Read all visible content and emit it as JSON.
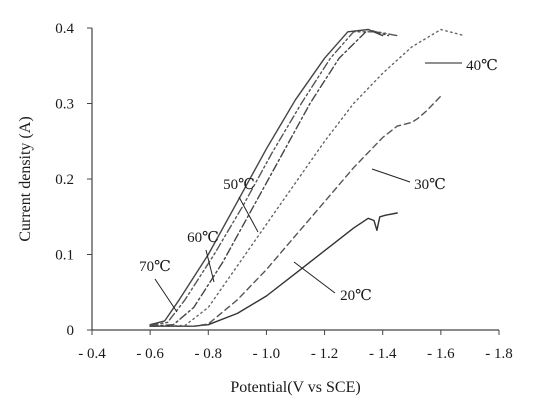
{
  "chart_data": {
    "type": "line",
    "xlabel": "Potential(V vs SCE)",
    "ylabel": "Current density (A)",
    "xlim": [
      -0.4,
      -1.8
    ],
    "ylim": [
      0,
      0.4
    ],
    "x_ticks": [
      -0.4,
      -0.6,
      -0.8,
      -1.0,
      -1.2,
      -1.4,
      -1.6,
      -1.8
    ],
    "x_tick_labels": [
      "- 0.4",
      "- 0.6",
      "- 0.8",
      "- 1.0",
      "- 1.2",
      "- 1.4",
      "- 1.6",
      "- 1.8"
    ],
    "y_ticks": [
      0,
      0.1,
      0.2,
      0.3,
      0.4
    ],
    "y_tick_labels": [
      "0",
      "0.1",
      "0.2",
      "0.3",
      "0.4"
    ],
    "grid": false,
    "series": [
      {
        "label": "20℃",
        "color": "#333333",
        "dash": "solid",
        "points": [
          [
            -0.6,
            0.005
          ],
          [
            -0.75,
            0.005
          ],
          [
            -0.8,
            0.007
          ],
          [
            -0.9,
            0.022
          ],
          [
            -1.0,
            0.045
          ],
          [
            -1.1,
            0.075
          ],
          [
            -1.2,
            0.105
          ],
          [
            -1.3,
            0.135
          ],
          [
            -1.35,
            0.148
          ],
          [
            -1.37,
            0.145
          ],
          [
            -1.38,
            0.132
          ],
          [
            -1.39,
            0.15
          ],
          [
            -1.41,
            0.152
          ],
          [
            -1.45,
            0.155
          ]
        ]
      },
      {
        "label": "30℃",
        "color": "#555555",
        "dash": "dashed",
        "points": [
          [
            -0.6,
            0.005
          ],
          [
            -0.75,
            0.005
          ],
          [
            -0.8,
            0.008
          ],
          [
            -0.9,
            0.04
          ],
          [
            -1.0,
            0.08
          ],
          [
            -1.1,
            0.125
          ],
          [
            -1.2,
            0.17
          ],
          [
            -1.3,
            0.215
          ],
          [
            -1.4,
            0.255
          ],
          [
            -1.45,
            0.27
          ],
          [
            -1.5,
            0.275
          ],
          [
            -1.52,
            0.28
          ],
          [
            -1.55,
            0.29
          ],
          [
            -1.6,
            0.31
          ]
        ]
      },
      {
        "label": "40℃",
        "color": "#666666",
        "dash": "dotted",
        "points": [
          [
            -0.6,
            0.005
          ],
          [
            -0.72,
            0.006
          ],
          [
            -0.8,
            0.03
          ],
          [
            -0.9,
            0.085
          ],
          [
            -1.0,
            0.14
          ],
          [
            -1.1,
            0.195
          ],
          [
            -1.2,
            0.25
          ],
          [
            -1.3,
            0.3
          ],
          [
            -1.4,
            0.34
          ],
          [
            -1.5,
            0.375
          ],
          [
            -1.6,
            0.398
          ],
          [
            -1.68,
            0.39
          ]
        ]
      },
      {
        "label": "50℃",
        "color": "#444444",
        "dash": "dashdot",
        "points": [
          [
            -0.6,
            0.005
          ],
          [
            -0.68,
            0.007
          ],
          [
            -0.75,
            0.03
          ],
          [
            -0.85,
            0.09
          ],
          [
            -0.95,
            0.16
          ],
          [
            -1.05,
            0.23
          ],
          [
            -1.15,
            0.3
          ],
          [
            -1.25,
            0.36
          ],
          [
            -1.35,
            0.398
          ],
          [
            -1.42,
            0.39
          ]
        ]
      },
      {
        "label": "60℃",
        "color": "#555555",
        "dash": "dashdotdot",
        "points": [
          [
            -0.6,
            0.006
          ],
          [
            -0.66,
            0.01
          ],
          [
            -0.72,
            0.04
          ],
          [
            -0.82,
            0.1
          ],
          [
            -0.92,
            0.165
          ],
          [
            -1.02,
            0.235
          ],
          [
            -1.12,
            0.3
          ],
          [
            -1.22,
            0.36
          ],
          [
            -1.3,
            0.395
          ],
          [
            -1.38,
            0.395
          ],
          [
            -1.45,
            0.39
          ]
        ]
      },
      {
        "label": "70℃",
        "color": "#444444",
        "dash": "solid",
        "points": [
          [
            -0.6,
            0.007
          ],
          [
            -0.65,
            0.012
          ],
          [
            -0.7,
            0.04
          ],
          [
            -0.8,
            0.1
          ],
          [
            -0.9,
            0.17
          ],
          [
            -1.0,
            0.24
          ],
          [
            -1.1,
            0.305
          ],
          [
            -1.2,
            0.36
          ],
          [
            -1.28,
            0.395
          ],
          [
            -1.35,
            0.398
          ],
          [
            -1.4,
            0.39
          ]
        ]
      }
    ]
  }
}
